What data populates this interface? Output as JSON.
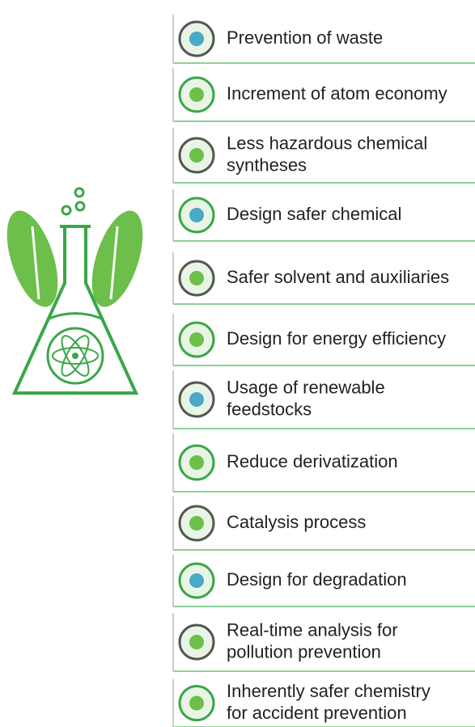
{
  "items": [
    {
      "lines": [
        "Prevention of waste"
      ]
    },
    {
      "lines": [
        "Increment of atom economy"
      ]
    },
    {
      "lines": [
        "Less hazardous chemical",
        "syntheses"
      ]
    },
    {
      "lines": [
        "Design safer chemical"
      ]
    },
    {
      "lines": [
        "Safer solvent and auxiliaries"
      ]
    },
    {
      "lines": [
        "Design for energy efficiency"
      ]
    },
    {
      "lines": [
        "Usage of renewable",
        "feedstocks"
      ]
    },
    {
      "lines": [
        "Reduce derivatization"
      ]
    },
    {
      "lines": [
        "Catalysis process"
      ]
    },
    {
      "lines": [
        "Design for degradation"
      ]
    },
    {
      "lines": [
        "Real-time analysis for",
        "pollution prevention"
      ]
    },
    {
      "lines": [
        "Inherently safer chemistry",
        "for accident prevention"
      ]
    }
  ]
}
